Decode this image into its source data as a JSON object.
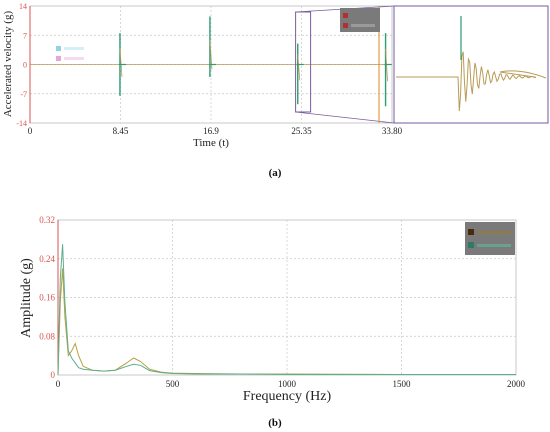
{
  "figure": {
    "panel_a_label": "(a)",
    "panel_b_label": "(b)"
  },
  "colors": {
    "axis_red": "#d9534f",
    "grid_gray": "#c8c8c8",
    "signal_green": "#2e9b74",
    "signal_tan": "#b89b55",
    "amplitude_olive": "#b8a040",
    "amplitude_green": "#5fae8e",
    "zoom_box": "#7a5aa0",
    "zoom_line_orange": "#e08a1e",
    "legend_bg": "#7a7a7a"
  },
  "chart_data": [
    {
      "type": "line",
      "panel": "a",
      "ylabel": "Accelerated velocity (g)",
      "xlabel": "Time (t)",
      "xlim": [
        0,
        33.8
      ],
      "ylim": [
        -14,
        14
      ],
      "x_ticks": [
        0,
        8.45,
        16.9,
        25.35,
        33.8
      ],
      "x_tick_labels": [
        "0",
        "8.45",
        "16.9",
        "25.35",
        "33.80"
      ],
      "y_ticks": [
        14,
        7,
        0,
        -7,
        -14
      ],
      "y_tick_labels": [
        "14",
        "7",
        "0",
        "-7",
        "-14"
      ],
      "grid": true,
      "series": [
        {
          "events": [
            {
              "t": 8.4,
              "peak": 7.5,
              "trough": -7.5
            },
            {
              "t": 16.8,
              "peak": 11.5,
              "trough": -3.0
            },
            {
              "t": 25.0,
              "peak": 5.0,
              "trough": -9.5
            },
            {
              "t": 33.2,
              "peak": 7.5,
              "trough": -10.0
            }
          ]
        }
      ],
      "zoom_range": [
        24.8,
        26.2
      ]
    },
    {
      "type": "line",
      "panel": "b",
      "ylabel": "Amplitude (g)",
      "xlabel": "Frequency (Hz)",
      "xlim": [
        0,
        2000
      ],
      "ylim": [
        0,
        0.32
      ],
      "x_ticks": [
        0,
        500,
        1000,
        1500,
        2000
      ],
      "x_tick_labels": [
        "0",
        "500",
        "1000",
        "1500",
        "2000"
      ],
      "y_ticks": [
        0,
        0.08,
        0.16,
        0.24,
        0.32
      ],
      "y_tick_labels": [
        "0",
        "0.08",
        "0.16",
        "0.24",
        "0.32"
      ],
      "grid": true,
      "series": [
        {
          "x": [
            0,
            10,
            20,
            30,
            45,
            60,
            75,
            90,
            110,
            150,
            200,
            250,
            300,
            330,
            360,
            400,
            450,
            500,
            600,
            800,
            1000,
            1500,
            2000
          ],
          "y": [
            0.0,
            0.15,
            0.22,
            0.12,
            0.04,
            0.05,
            0.065,
            0.04,
            0.018,
            0.01,
            0.008,
            0.01,
            0.025,
            0.035,
            0.028,
            0.012,
            0.006,
            0.004,
            0.003,
            0.002,
            0.002,
            0.001,
            0.001
          ]
        },
        {
          "x": [
            0,
            10,
            20,
            30,
            45,
            60,
            75,
            90,
            110,
            150,
            200,
            250,
            300,
            330,
            360,
            400,
            450,
            500,
            600,
            800,
            1000,
            1500,
            2000
          ],
          "y": [
            0.0,
            0.2,
            0.27,
            0.15,
            0.05,
            0.035,
            0.025,
            0.015,
            0.012,
            0.01,
            0.008,
            0.01,
            0.018,
            0.022,
            0.02,
            0.009,
            0.005,
            0.003,
            0.002,
            0.002,
            0.001,
            0.001,
            0.001
          ]
        }
      ]
    }
  ]
}
